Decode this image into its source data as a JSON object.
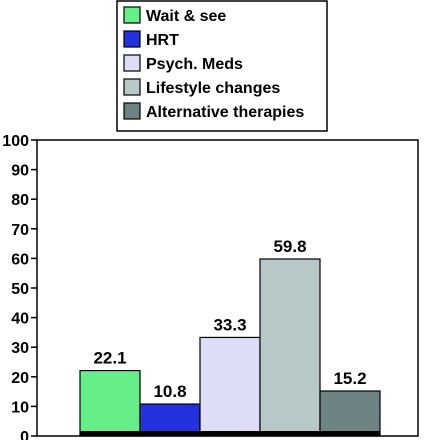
{
  "chart_data": {
    "type": "bar",
    "title": "",
    "xlabel": "",
    "ylabel": "",
    "ylim": [
      0,
      100
    ],
    "yticks": [
      "0",
      "10",
      "20",
      "30",
      "40",
      "50",
      "60",
      "70",
      "80",
      "90",
      "100"
    ],
    "grid": false,
    "legend_position": "top",
    "series": [
      {
        "name": "Wait & see",
        "value": 22.1,
        "value_label": "22.1",
        "color": "#66ee88"
      },
      {
        "name": "HRT",
        "value": 10.8,
        "value_label": "10.8",
        "color": "#2233dd"
      },
      {
        "name": "Psych. Meds",
        "value": 33.3,
        "value_label": "33.3",
        "color": "#ddddf8"
      },
      {
        "name": "Lifestyle changes",
        "value": 59.8,
        "value_label": "59.8",
        "color": "#b8c8c8"
      },
      {
        "name": "Alternative therapies",
        "value": 15.2,
        "value_label": "15.2",
        "color": "#6e8484"
      }
    ]
  }
}
